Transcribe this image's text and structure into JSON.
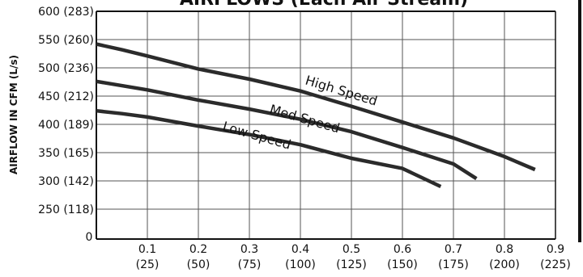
{
  "chart_data": {
    "type": "line",
    "title": "AIRFLOWS (Each Air Stream)",
    "ylabel": "AIRFLOW IN CFM (L/s)",
    "xlabel": "",
    "xlim": [
      0,
      0.9
    ],
    "ylim": [
      200,
      600
    ],
    "grid": true,
    "x_ticks": [
      {
        "value": 0.1,
        "label": "0.1",
        "sub": "(25)"
      },
      {
        "value": 0.2,
        "label": "0.2",
        "sub": "(50)"
      },
      {
        "value": 0.3,
        "label": "0.3",
        "sub": "(75)"
      },
      {
        "value": 0.4,
        "label": "0.4",
        "sub": "(100)"
      },
      {
        "value": 0.5,
        "label": "0.5",
        "sub": "(125)"
      },
      {
        "value": 0.6,
        "label": "0.6",
        "sub": "(150)"
      },
      {
        "value": 0.7,
        "label": "0.7",
        "sub": "(175)"
      },
      {
        "value": 0.8,
        "label": "0.8",
        "sub": "(200)"
      },
      {
        "value": 0.9,
        "label": "0.9",
        "sub": "(225)"
      }
    ],
    "y_ticks": [
      {
        "value": 600,
        "label": "600 (283)"
      },
      {
        "value": 550,
        "label": "550 (260)"
      },
      {
        "value": 500,
        "label": "500 (236)"
      },
      {
        "value": 450,
        "label": "450 (212)"
      },
      {
        "value": 400,
        "label": "400 (189)"
      },
      {
        "value": 350,
        "label": "350 (165)"
      },
      {
        "value": 300,
        "label": "300 (142)"
      },
      {
        "value": 250,
        "label": "250 (118)"
      }
    ],
    "origin_label": "0",
    "series": [
      {
        "name": "High Speed",
        "x": [
          0,
          0.05,
          0.1,
          0.2,
          0.3,
          0.4,
          0.5,
          0.6,
          0.7,
          0.8,
          0.86
        ],
        "y": [
          542,
          532,
          521,
          498,
          480,
          459,
          432,
          404,
          376,
          343,
          320
        ]
      },
      {
        "name": "Med Speed",
        "x": [
          0,
          0.1,
          0.2,
          0.3,
          0.4,
          0.5,
          0.6,
          0.7,
          0.745
        ],
        "y": [
          476,
          461,
          443,
          427,
          409,
          387,
          359,
          330,
          304
        ]
      },
      {
        "name": "Low Speed",
        "x": [
          0,
          0.05,
          0.1,
          0.2,
          0.3,
          0.4,
          0.5,
          0.6,
          0.675
        ],
        "y": [
          424,
          419,
          413,
          397,
          382,
          364,
          340,
          322,
          290
        ]
      }
    ],
    "colors": {
      "line": "#2b2b2b",
      "grid": "#555555",
      "axis": "#111111"
    }
  }
}
